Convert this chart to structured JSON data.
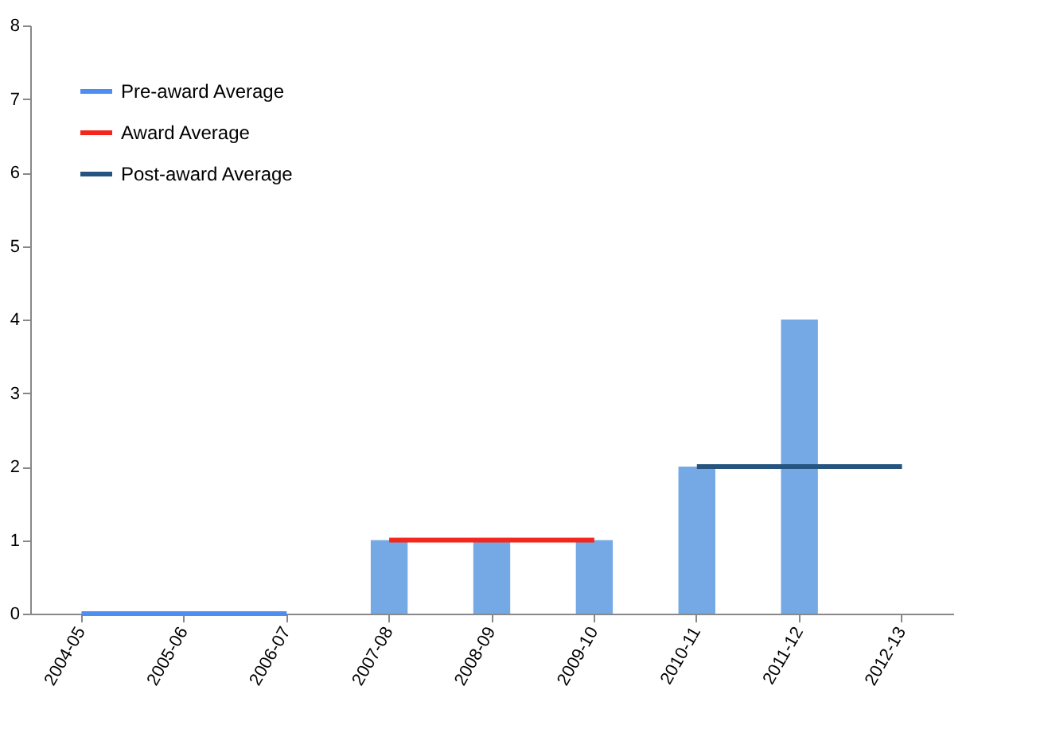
{
  "chart_data": {
    "type": "bar",
    "categories": [
      "2004-05",
      "2005-06",
      "2006-07",
      "2007-08",
      "2008-09",
      "2009-10",
      "2010-11",
      "2011-12",
      "2012-13"
    ],
    "series": [
      {
        "color": "#74a9e6",
        "values": [
          0,
          0,
          0,
          1,
          1,
          1,
          2,
          4,
          0
        ]
      },
      {
        "type": "line",
        "name": "Pre-award Average",
        "color": "#4d8ef0",
        "values": [
          0,
          0,
          0,
          null,
          null,
          null,
          null,
          null,
          null
        ]
      },
      {
        "type": "line",
        "name": "Award Average",
        "color": "#f5261b",
        "values": [
          null,
          null,
          null,
          1,
          1,
          1,
          null,
          null,
          null
        ]
      },
      {
        "type": "line",
        "name": "Post-award Average",
        "color": "#24547f",
        "values": [
          null,
          null,
          null,
          null,
          null,
          null,
          2,
          2,
          2
        ]
      }
    ],
    "ylim": [
      0,
      8
    ],
    "yticks": [
      0,
      1,
      2,
      3,
      4,
      5,
      6,
      7,
      8
    ],
    "grid": false,
    "legend": "top left",
    "line_style": "solid"
  }
}
